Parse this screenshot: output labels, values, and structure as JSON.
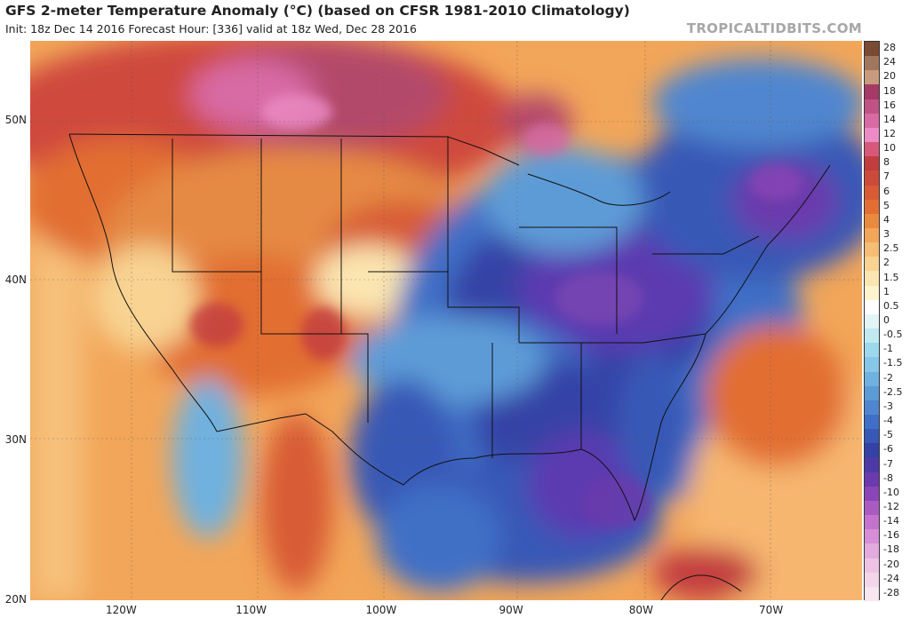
{
  "header": {
    "title": "GFS 2-meter Temperature Anomaly (°C) (based on CFSR 1981-2010 Climatology)",
    "subtitle": "Init: 18z Dec 14 2016   Forecast Hour: [336]   valid at 18z Wed, Dec 28 2016",
    "credit": "TROPICALTIDBITS.COM"
  },
  "map": {
    "latitude_labels": [
      "50N",
      "40N",
      "30N",
      "20N"
    ],
    "longitude_labels": [
      "120W",
      "110W",
      "100W",
      "90W",
      "80W",
      "70W"
    ],
    "lat_range": [
      20,
      55
    ],
    "lon_range": [
      -127,
      -63
    ],
    "regions": [
      {
        "name": "northern-plains-canada",
        "anomaly": 16
      },
      {
        "name": "pacific-northwest",
        "anomaly": 6
      },
      {
        "name": "southwest",
        "anomaly": 4
      },
      {
        "name": "great-lakes-ohio-valley",
        "anomaly": -7
      },
      {
        "name": "southeast",
        "anomaly": -5
      },
      {
        "name": "gulf-of-mexico",
        "anomaly": -4
      },
      {
        "name": "northeast",
        "anomaly": -6
      },
      {
        "name": "west-atlantic",
        "anomaly": 3
      },
      {
        "name": "cuba",
        "anomaly": 6
      }
    ]
  },
  "colorbar": {
    "labels": [
      "28",
      "24",
      "20",
      "18",
      "16",
      "14",
      "12",
      "10",
      "8",
      "7",
      "6",
      "5",
      "4",
      "3",
      "2.5",
      "2",
      "1.5",
      "1",
      "0.5",
      "0",
      "-0.5",
      "-1",
      "-1.5",
      "-2",
      "-2.5",
      "-3",
      "-4",
      "-5",
      "-6",
      "-7",
      "-8",
      "-10",
      "-12",
      "-14",
      "-16",
      "-18",
      "-20",
      "-24",
      "-28"
    ],
    "colors": [
      "#7a4a34",
      "#a0765e",
      "#c89a7e",
      "#a53a66",
      "#c05285",
      "#d86ba4",
      "#ec8cc6",
      "#d8587a",
      "#c23d40",
      "#cc4a3a",
      "#d85b35",
      "#e26e33",
      "#ea8a3f",
      "#f2a659",
      "#f5bd75",
      "#f8d392",
      "#fbe5b0",
      "#fdf3cf",
      "#ffffff",
      "#e2f6f8",
      "#bfeaf1",
      "#9dd8ec",
      "#86c6e6",
      "#6fb1df",
      "#5d9bd7",
      "#4f86cf",
      "#3f6fc6",
      "#3858b6",
      "#3442a6",
      "#4d3aa6",
      "#6b3aac",
      "#8a45b6",
      "#a95bc2",
      "#c373cd",
      "#d68ed6",
      "#e3aadd",
      "#edc3e5",
      "#f3d6ea",
      "#f8e6f0"
    ]
  }
}
